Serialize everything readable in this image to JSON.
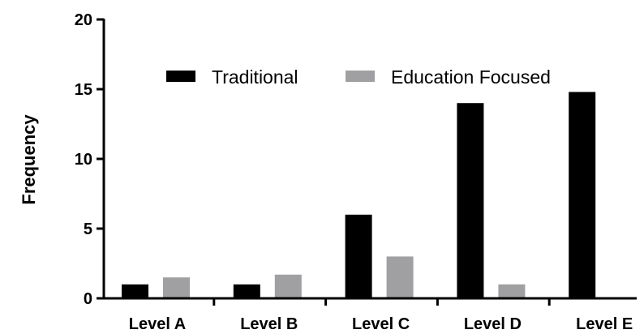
{
  "chart_data": {
    "type": "bar",
    "title": "",
    "xlabel": "",
    "ylabel": "Frequency",
    "categories": [
      "Level A",
      "Level B",
      "Level C",
      "Level D",
      "Level E"
    ],
    "series": [
      {
        "name": "Traditional",
        "color": "#000000",
        "values": [
          1,
          1,
          6,
          14,
          14.8
        ]
      },
      {
        "name": "Education Focused",
        "color": "#a0a0a2",
        "values": [
          1.5,
          1.7,
          3,
          1,
          0
        ]
      }
    ],
    "ylim": [
      0,
      20
    ],
    "yticks": [
      0,
      5,
      10,
      15,
      20
    ],
    "grid": false,
    "legend_position": "top-center"
  }
}
